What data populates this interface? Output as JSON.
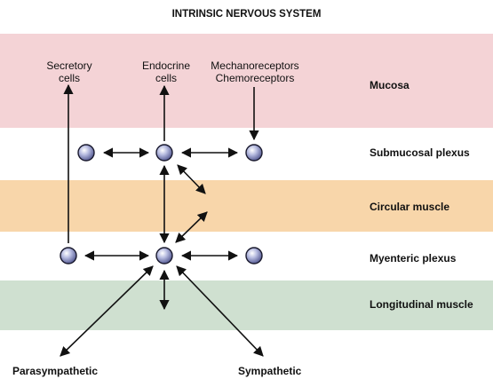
{
  "title": "INTRINSIC NERVOUS SYSTEM",
  "layers": {
    "mucosa": "Mucosa",
    "submucosal": "Submucosal plexus",
    "circular": "Circular muscle",
    "myenteric": "Myenteric plexus",
    "longitudinal": "Longitudinal muscle"
  },
  "targets": {
    "secretory": [
      "Secretory",
      "cells"
    ],
    "endocrine": [
      "Endocrine",
      "cells"
    ],
    "receptors": [
      "Mechanoreceptors",
      "Chemoreceptors"
    ]
  },
  "inputs": {
    "parasympathetic": "Parasympathetic",
    "sympathetic": "Sympathetic"
  },
  "colors": {
    "mucosa": "#f4d3d6",
    "circular_muscle": "#f8d6aa",
    "longitudinal_muscle": "#cfe0d0",
    "neuron": "#8f95c8"
  }
}
